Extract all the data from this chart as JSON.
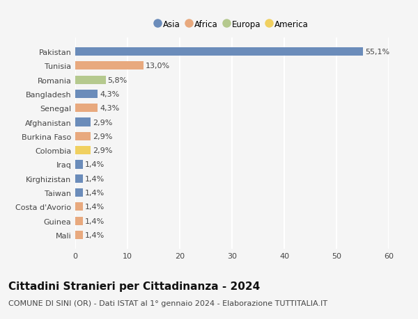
{
  "categories": [
    "Pakistan",
    "Tunisia",
    "Romania",
    "Bangladesh",
    "Senegal",
    "Afghanistan",
    "Burkina Faso",
    "Colombia",
    "Iraq",
    "Kirghizistan",
    "Taiwan",
    "Costa d'Avorio",
    "Guinea",
    "Mali"
  ],
  "values": [
    55.1,
    13.0,
    5.8,
    4.3,
    4.3,
    2.9,
    2.9,
    2.9,
    1.4,
    1.4,
    1.4,
    1.4,
    1.4,
    1.4
  ],
  "labels": [
    "55,1%",
    "13,0%",
    "5,8%",
    "4,3%",
    "4,3%",
    "2,9%",
    "2,9%",
    "2,9%",
    "1,4%",
    "1,4%",
    "1,4%",
    "1,4%",
    "1,4%",
    "1,4%"
  ],
  "continents": [
    "Asia",
    "Africa",
    "Europa",
    "Asia",
    "Africa",
    "Asia",
    "Africa",
    "America",
    "Asia",
    "Asia",
    "Asia",
    "Africa",
    "Africa",
    "Africa"
  ],
  "continent_colors": {
    "Asia": "#6b8cba",
    "Africa": "#e8a97e",
    "Europa": "#b5c98e",
    "America": "#f0d060"
  },
  "legend_order": [
    "Asia",
    "Africa",
    "Europa",
    "America"
  ],
  "xlim": [
    0,
    60
  ],
  "xticks": [
    0,
    10,
    20,
    30,
    40,
    50,
    60
  ],
  "title": "Cittadini Stranieri per Cittadinanza - 2024",
  "subtitle": "COMUNE DI SINI (OR) - Dati ISTAT al 1° gennaio 2024 - Elaborazione TUTTITALIA.IT",
  "background_color": "#f5f5f5",
  "grid_color": "#ffffff",
  "bar_height": 0.6,
  "title_fontsize": 11,
  "subtitle_fontsize": 8,
  "label_fontsize": 8,
  "tick_fontsize": 8,
  "legend_fontsize": 8.5
}
